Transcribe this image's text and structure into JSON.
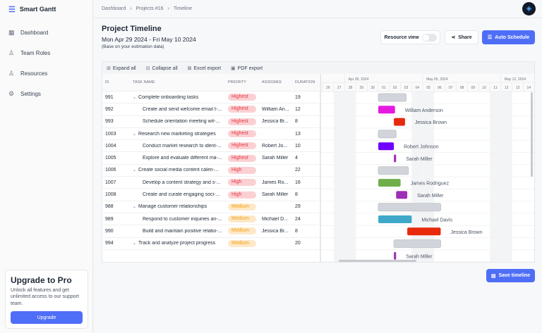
{
  "app": {
    "name": "Smart Gantt"
  },
  "sidebar": {
    "items": [
      {
        "label": "Dashboard",
        "icon": "grid-icon"
      },
      {
        "label": "Team Roles",
        "icon": "user-icon"
      },
      {
        "label": "Resources",
        "icon": "users-icon"
      },
      {
        "label": "Settings",
        "icon": "gear-icon"
      }
    ]
  },
  "promo": {
    "title": "Upgrade to Pro",
    "text": "Unlock all features and get unlimited access to our support team.",
    "button": "Upgrade"
  },
  "breadcrumb": [
    "Dashboard",
    "Projects #16",
    "Timeline"
  ],
  "header": {
    "title": "Project Timeline",
    "dates": "Mon Apr 29 2024 - Fri May 10 2024",
    "note": "(Base on your estimation data)",
    "resource_view": "Resource view",
    "resource_view_on": false,
    "share": "Share",
    "auto_schedule": "Auto Schedule"
  },
  "toolbar": {
    "expand": "Expand all",
    "collapse": "Collapse all",
    "excel": "Excel export",
    "pdf": "PDF export"
  },
  "columns": [
    "ID",
    "TASK NAME",
    "PRIORITY",
    "ASSIGNEE",
    "DURATION"
  ],
  "priority_colors": {
    "Highest": {
      "bg": "#fbd0d3",
      "fg": "#e53945"
    },
    "High": {
      "bg": "#fbd0d3",
      "fg": "#e53945"
    },
    "Medium": {
      "bg": "#fde8c8",
      "fg": "#f59e0b"
    }
  },
  "tasks": [
    {
      "id": "991",
      "name": "Complete onboarding tasks",
      "parent": true,
      "priority": "Highest",
      "assignee": "",
      "duration": "19",
      "bar": {
        "start": "2024-05-01",
        "days": 2.5,
        "color": "#d1d5db"
      }
    },
    {
      "id": "992",
      "name": "Create and send welcome email t-...",
      "parent": false,
      "priority": "Highest",
      "assignee": "William An...",
      "duration": "12",
      "bar": {
        "start": "2024-05-01",
        "days": 1.5,
        "color": "#e619e0",
        "label": "William Anderson"
      }
    },
    {
      "id": "993",
      "name": "Schedule orientation meeting wit-...",
      "parent": false,
      "priority": "Highest",
      "assignee": "Jessica Br...",
      "duration": "8",
      "bar": {
        "start": "2024-05-02.4",
        "days": 1,
        "color": "#e8290b",
        "label": "Jessica Brown"
      }
    },
    {
      "id": "1003",
      "name": "Research new marketing strategies",
      "parent": true,
      "priority": "Highest",
      "assignee": "",
      "duration": "13",
      "bar": {
        "start": "2024-05-01",
        "days": 1.6,
        "color": "#d1d5db"
      }
    },
    {
      "id": "1004",
      "name": "Conduct market research to ident-...",
      "parent": false,
      "priority": "Highest",
      "assignee": "Robert Jo...",
      "duration": "10",
      "bar": {
        "start": "2024-05-01",
        "days": 1.4,
        "color": "#6f00ff",
        "label": "Robert Johnson"
      }
    },
    {
      "id": "1005",
      "name": "Explore and evaluate different ma-...",
      "parent": false,
      "priority": "Highest",
      "assignee": "Sarah Miller",
      "duration": "4",
      "bar": {
        "start": "2024-05-02.4",
        "days": 0.2,
        "color": "#9b30b0",
        "label": "Sarah Miller"
      }
    },
    {
      "id": "1006",
      "name": "Create social media content calen-...",
      "parent": true,
      "priority": "High",
      "assignee": "",
      "duration": "22",
      "bar": {
        "start": "2024-05-01",
        "days": 2.7,
        "color": "#d1d5db"
      }
    },
    {
      "id": "1007",
      "name": "Develop a content strategy and s-...",
      "parent": false,
      "priority": "High",
      "assignee": "James Ro...",
      "duration": "16",
      "bar": {
        "start": "2024-05-01",
        "days": 2,
        "color": "#6fae4a",
        "label": "James Rodriguez"
      }
    },
    {
      "id": "1008",
      "name": "Create and curate engaging soci-...",
      "parent": false,
      "priority": "High",
      "assignee": "Sarah Miller",
      "duration": "8",
      "bar": {
        "start": "2024-05-02.6",
        "days": 1,
        "color": "#9d2fb5",
        "label": "Sarah Miller"
      }
    },
    {
      "id": "988",
      "name": "Manage customer relationships",
      "parent": true,
      "priority": "Medium",
      "assignee": "",
      "duration": "29",
      "bar": {
        "start": "2024-05-01",
        "days": 5.6,
        "color": "#d1d5db"
      }
    },
    {
      "id": "989",
      "name": "Respond to customer inquiries an-...",
      "parent": false,
      "priority": "Medium",
      "assignee": "Michael D...",
      "duration": "24",
      "bar": {
        "start": "2024-05-01",
        "days": 3,
        "color": "#3fa8c8",
        "label": "Michael Davis"
      }
    },
    {
      "id": "990",
      "name": "Build and maintain positive relatio-...",
      "parent": false,
      "priority": "Medium",
      "assignee": "Jessica Br...",
      "duration": "8",
      "bar": {
        "start": "2024-05-03.6",
        "days": 3,
        "color": "#e8290b",
        "label": "Jessica Brown"
      }
    },
    {
      "id": "994",
      "name": "Track and analyze project progress",
      "parent": true,
      "priority": "Medium",
      "assignee": "",
      "duration": "20",
      "bar": {
        "start": "2024-05-02.4",
        "days": 4.2,
        "color": "#d1d5db"
      }
    },
    {
      "id": "",
      "name": "",
      "parent": false,
      "priority": "",
      "assignee": "",
      "duration": "",
      "bar": {
        "start": "2024-05-02.4",
        "days": 0.2,
        "color": "#9b30b0",
        "label": "Sarah Miller"
      }
    }
  ],
  "timeline": {
    "weeks": [
      "Apr 28, 2024",
      "May 05, 2024",
      "May 12, 2024"
    ],
    "days": [
      "26",
      "27",
      "28",
      "29",
      "30",
      "01",
      "02",
      "03",
      "04",
      "05",
      "06",
      "07",
      "08",
      "09",
      "10",
      "11",
      "12",
      "13",
      "14"
    ],
    "weekend_days": [
      "27",
      "28",
      "04",
      "05",
      "11",
      "12"
    ]
  },
  "save": "Save timeline"
}
